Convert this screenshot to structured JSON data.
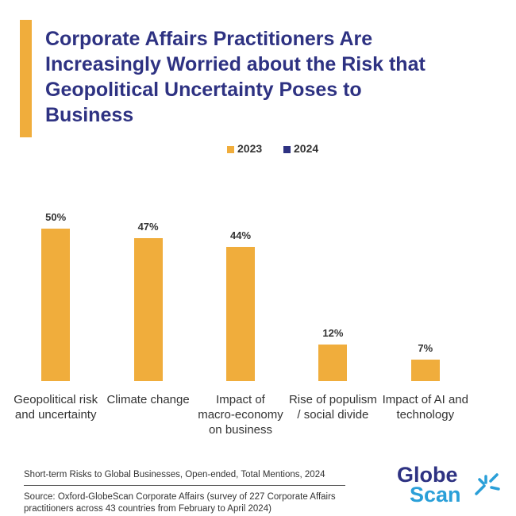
{
  "chart_data": {
    "type": "bar",
    "title": "Corporate Affairs Practitioners Are Increasingly Worried about the Risk that Geopolitical Uncertainty Poses to Business",
    "categories": [
      "Geopolitical risk and uncertainty",
      "Climate change",
      "Impact of macro-economy on business",
      "Rise of populism / social divide",
      "Impact of AI and technology"
    ],
    "series": [
      {
        "name": "2023",
        "color": "#f0ad3c",
        "values": [
          50,
          47,
          44,
          12,
          7
        ],
        "value_labels": [
          "50%",
          "47%",
          "44%",
          "12%",
          "7%"
        ]
      },
      {
        "name": "2024",
        "color": "#2e3282",
        "values": [
          null,
          null,
          null,
          null,
          null
        ]
      }
    ],
    "ylim": [
      0,
      50
    ],
    "subtitle": "Short-term Risks to Global Businesses, Open-ended, Total Mentions, 2024",
    "source": "Source: Oxford-GlobeScan Corporate Affairs (survey of 227 Corporate Affairs practitioners across 43 countries from February to April 2024)"
  },
  "logo": {
    "line1": "Globe",
    "line2": "Scan"
  }
}
